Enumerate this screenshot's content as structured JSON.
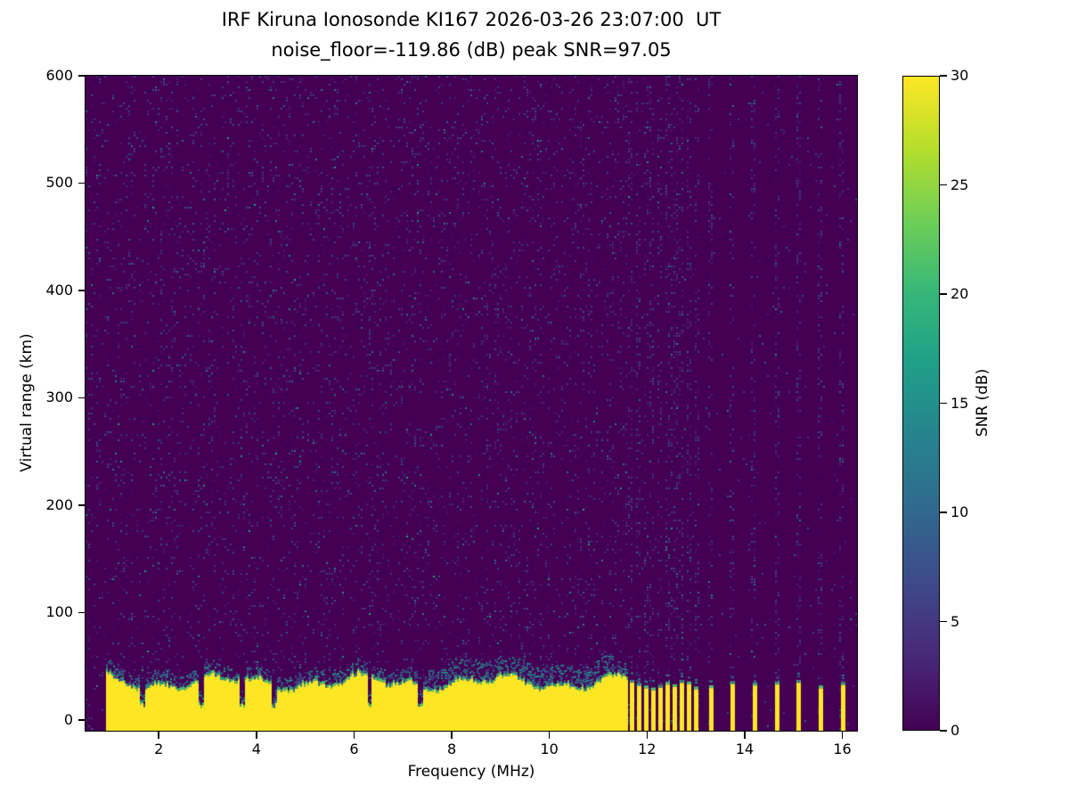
{
  "chart_data": {
    "type": "heatmap",
    "title": "IRF Kiruna Ionosonde KI167 2026-03-26 23:07:00  UT",
    "subtitle": "noise_floor=-119.86 (dB) peak SNR=97.05",
    "station": "IRF Kiruna Ionosonde KI167",
    "timestamp_ut": "2026-03-26 23:07:00",
    "noise_floor_db": -119.86,
    "peak_snr_db": 97.05,
    "xlabel": "Frequency (MHz)",
    "ylabel": "Virtual range (km)",
    "colorbar_label": "SNR (dB)",
    "colormap": "viridis",
    "colormap_stops": [
      "#440154",
      "#482878",
      "#3e4989",
      "#31688e",
      "#26828e",
      "#1f9e89",
      "#35b779",
      "#6ece58",
      "#b5de2b",
      "#fde725"
    ],
    "xlim": [
      0.5,
      16.3
    ],
    "ylim": [
      -10,
      600
    ],
    "clim": [
      0,
      30
    ],
    "xticks": [
      2,
      4,
      6,
      8,
      10,
      12,
      14,
      16
    ],
    "yticks": [
      0,
      100,
      200,
      300,
      400,
      500,
      600
    ],
    "colorbar_ticks": [
      0,
      5,
      10,
      15,
      20,
      25,
      30
    ],
    "grid": false,
    "colorbar_position": "right",
    "colors": {
      "background": "#ffffff",
      "text": "#000000"
    },
    "features": {
      "ground_echo_band": {
        "freq_range_mhz": [
          0.92,
          11.58
        ],
        "top_range_km_mean": 32,
        "top_range_km_variation": 10,
        "max_snr_db": 30,
        "notch_freqs_mhz": [
          1.65,
          2.85,
          3.7,
          4.35,
          6.3,
          7.35
        ],
        "description": "continuous saturated near-range echo band from plot bottom (~-10 km) up to ~25-45 km with ragged green-teal upper fringe and narrow dark notches"
      },
      "sounding_stripes": {
        "cluster_freqs_mhz": [
          11.68,
          11.83,
          11.97,
          12.12,
          12.27,
          12.41,
          12.56,
          12.71,
          12.85,
          13.0
        ],
        "isolated_freqs_mhz": [
          13.3,
          13.75,
          14.2,
          14.65,
          15.1,
          15.55,
          16.0
        ],
        "top_range_km": 30,
        "description": "discrete saturated bottom columns above 11.6 MHz where the sweep is channelized"
      },
      "background_noise": {
        "speckle_snr_db": [
          1,
          12
        ],
        "dense_region_max_freq_mhz": 11.6,
        "rfi_column_boost": true,
        "description": "sparse blue-teal speckle noise over the full range; denser below 11.6 MHz, dashed vertical RFI streaks at stripe frequencies above 11.6 MHz"
      }
    }
  }
}
